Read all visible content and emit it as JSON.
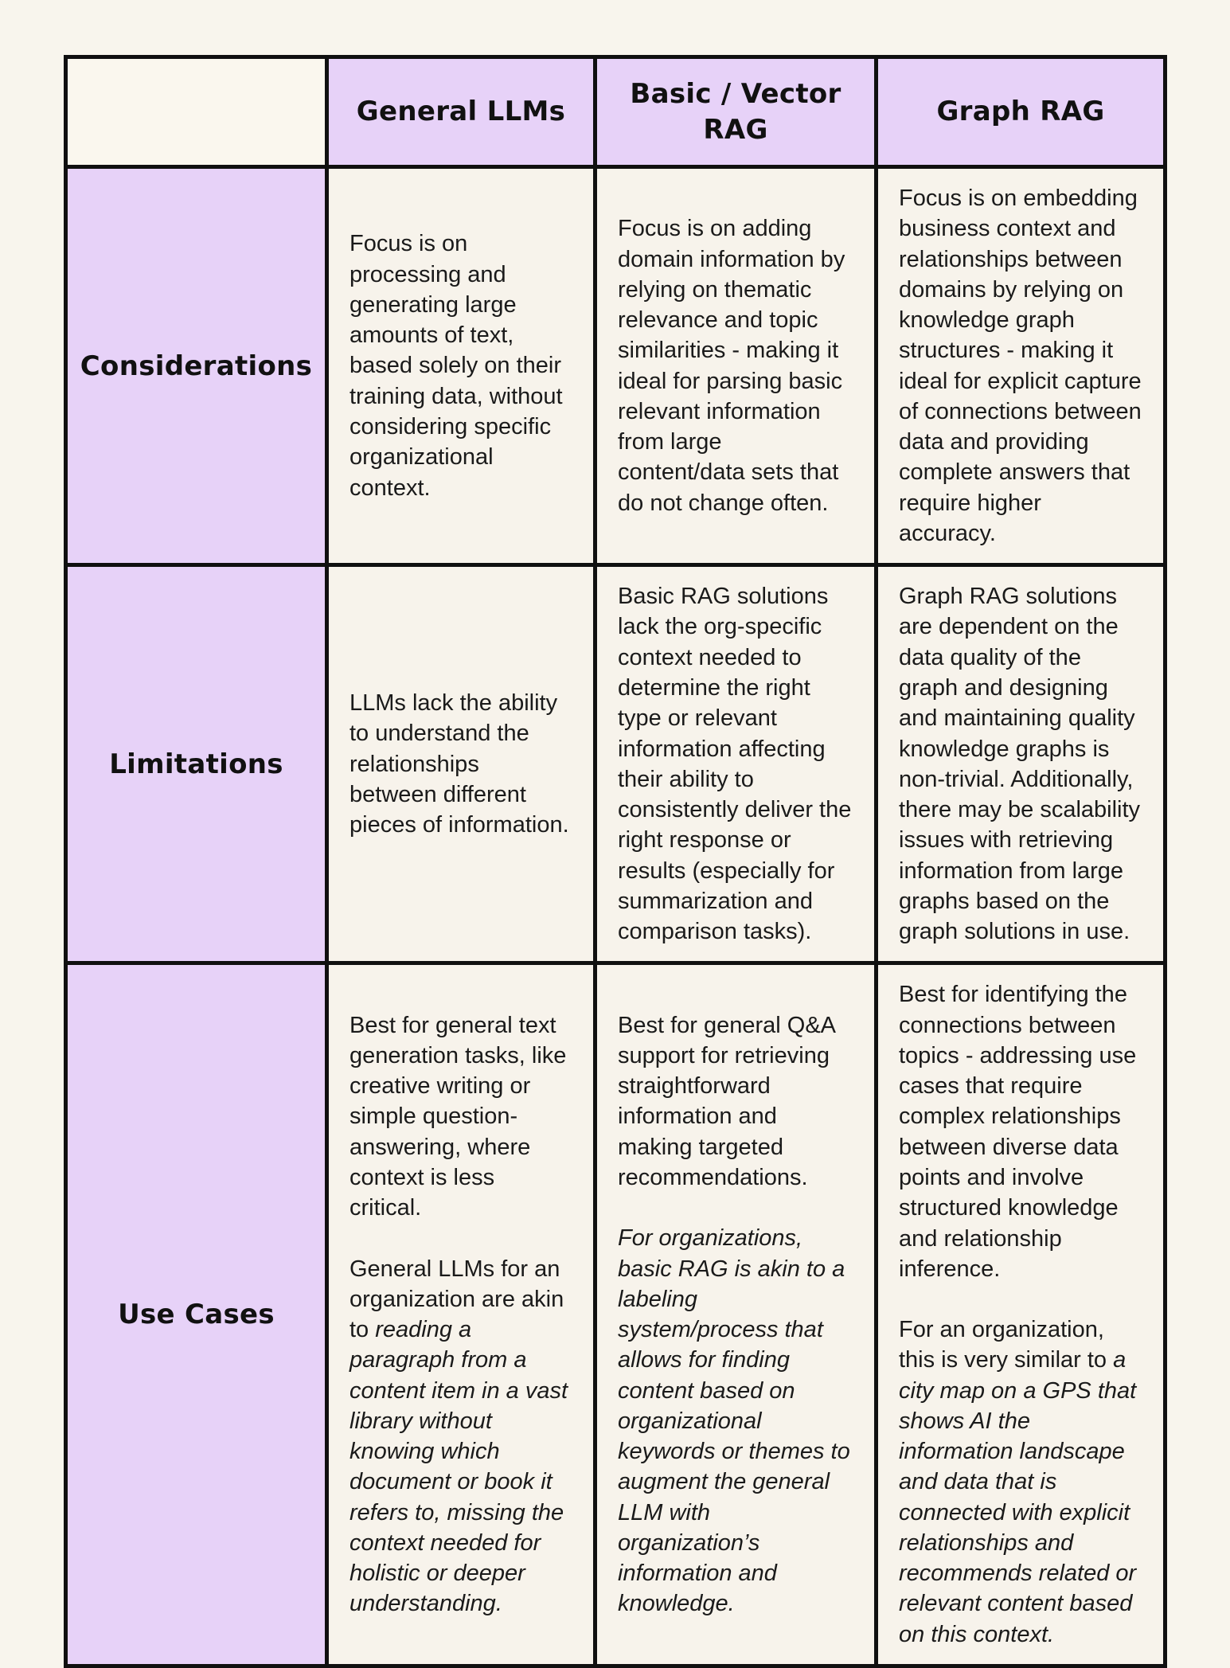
{
  "colors": {
    "page_bg": "#f8f5ed",
    "cell_bg": "#f7f3eb",
    "corner_bg": "#faf7ee",
    "accent_bg": "#e7d2f8",
    "border": "#101010"
  },
  "table": {
    "columns": [
      "General LLMs",
      "Basic / Vector\nRAG",
      "Graph RAG"
    ],
    "rows": [
      {
        "label": "Considerations",
        "cells": [
          [
            [
              {
                "t": "Focus is on processing and generating large amounts of text, based solely on their training data, without considering specific organizational context.",
                "i": false
              }
            ]
          ],
          [
            [
              {
                "t": "Focus is on adding domain information by relying on thematic relevance and topic similarities - making it ideal for parsing basic relevant information from large content/data sets that do not change often.",
                "i": false
              }
            ]
          ],
          [
            [
              {
                "t": "Focus is on embedding business context and relationships between domains by relying on knowledge graph structures - making it ideal for explicit capture of connections between data and providing complete answers that require higher accuracy.",
                "i": false
              }
            ]
          ]
        ]
      },
      {
        "label": "Limitations",
        "cells": [
          [
            [
              {
                "t": "LLMs lack the ability to understand the relationships between different pieces of information.",
                "i": false
              }
            ]
          ],
          [
            [
              {
                "t": "Basic RAG solutions lack the org-specific context needed to determine the right type or relevant information affecting their ability to consistently deliver the right response or results (especially for summarization and comparison tasks).",
                "i": false
              }
            ]
          ],
          [
            [
              {
                "t": "Graph RAG solutions are dependent on the data quality of the graph and designing and maintaining quality knowledge graphs is non-trivial. Additionally, there may be scalability issues with retrieving information from large graphs based on the graph solutions in use.",
                "i": false
              }
            ]
          ]
        ]
      },
      {
        "label": "Use Cases",
        "cells": [
          [
            [
              {
                "t": "Best for general text generation tasks, like creative writing or simple question-answering, where context is less critical.",
                "i": false
              }
            ],
            [
              {
                "t": "General LLMs for an organization are akin to ",
                "i": false
              },
              {
                "t": "reading a paragraph from a content item in a vast library without knowing which document or book it refers to, missing the context needed for holistic or deeper understanding.",
                "i": true
              }
            ]
          ],
          [
            [
              {
                "t": "Best for general Q&A support for retrieving straightforward information and making targeted recommendations.",
                "i": false
              }
            ],
            [
              {
                "t": "For organizations, basic RAG is akin to a labeling system/process that allows for finding content based on organizational keywords or themes to augment the general LLM with organization’s information and knowledge.",
                "i": true
              }
            ]
          ],
          [
            [
              {
                "t": "Best for identifying the connections between topics - addressing use cases that require complex relationships between diverse data points and involve structured knowledge and relationship inference.",
                "i": false
              }
            ],
            [
              {
                "t": "For an organization, this is very similar to ",
                "i": false
              },
              {
                "t": "a city map on a GPS that shows AI the information landscape and data that is connected with explicit relationships and recommends related or relevant content based on this context.",
                "i": true
              }
            ]
          ]
        ]
      }
    ]
  }
}
